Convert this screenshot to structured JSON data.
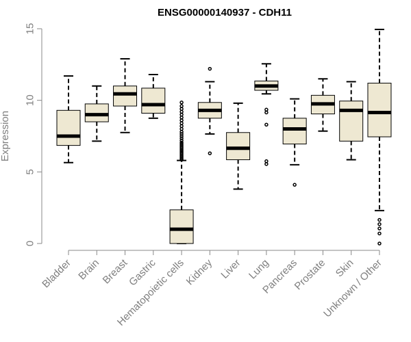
{
  "chart_data": {
    "type": "boxplot",
    "title": "ENSG00000140937 - CDH11",
    "ylabel": "Expression",
    "xlabel": "",
    "ylim": [
      0,
      15
    ],
    "yticks": [
      0,
      5,
      10,
      15
    ],
    "colors": {
      "box_fill": "#EEE8D2",
      "box_stroke": "#000000",
      "axis": "#888888",
      "tick_label": "#7F7F7F",
      "title": "#000000"
    },
    "groups": [
      {
        "name": "Bladder",
        "whisker_low": 5.65,
        "q1": 6.85,
        "median": 7.5,
        "q3": 9.3,
        "whisker_high": 11.7,
        "outliers": []
      },
      {
        "name": "Brain",
        "whisker_low": 7.15,
        "q1": 8.5,
        "median": 9.0,
        "q3": 9.75,
        "whisker_high": 11.0,
        "outliers": []
      },
      {
        "name": "Breast",
        "whisker_low": 7.75,
        "q1": 9.6,
        "median": 10.45,
        "q3": 11.0,
        "whisker_high": 12.9,
        "outliers": []
      },
      {
        "name": "Gastric",
        "whisker_low": 8.75,
        "q1": 9.1,
        "median": 9.7,
        "q3": 10.85,
        "whisker_high": 11.8,
        "outliers": []
      },
      {
        "name": "Hematopoietic cells",
        "whisker_low": 0.0,
        "q1": 0.0,
        "median": 1.0,
        "q3": 2.35,
        "whisker_high": 5.8,
        "outliers": [
          5.85,
          5.95,
          6.05,
          6.15,
          6.25,
          6.35,
          6.45,
          6.55,
          6.65,
          6.75,
          6.85,
          6.95,
          7.05,
          7.2,
          7.35,
          7.5,
          7.65,
          7.8,
          8.0,
          8.2,
          8.4,
          8.6,
          8.8,
          9.0,
          9.2,
          9.4,
          9.6,
          9.85
        ]
      },
      {
        "name": "Kidney",
        "whisker_low": 7.65,
        "q1": 8.75,
        "median": 9.3,
        "q3": 9.85,
        "whisker_high": 11.3,
        "outliers": [
          12.2,
          6.3
        ]
      },
      {
        "name": "Liver",
        "whisker_low": 3.8,
        "q1": 5.85,
        "median": 6.65,
        "q3": 7.75,
        "whisker_high": 9.8,
        "outliers": []
      },
      {
        "name": "Lung",
        "whisker_low": 10.45,
        "q1": 10.7,
        "median": 11.0,
        "q3": 11.35,
        "whisker_high": 12.55,
        "outliers": [
          9.35,
          9.15,
          8.3,
          5.75,
          5.55
        ]
      },
      {
        "name": "Pancreas",
        "whisker_low": 5.5,
        "q1": 6.95,
        "median": 8.0,
        "q3": 8.75,
        "whisker_high": 10.1,
        "outliers": [
          4.1
        ]
      },
      {
        "name": "Prostate",
        "whisker_low": 7.85,
        "q1": 9.05,
        "median": 9.75,
        "q3": 10.35,
        "whisker_high": 11.5,
        "outliers": []
      },
      {
        "name": "Skin",
        "whisker_low": 5.85,
        "q1": 7.15,
        "median": 9.3,
        "q3": 9.95,
        "whisker_high": 11.3,
        "outliers": []
      },
      {
        "name": "Unknown / Other",
        "whisker_low": 2.3,
        "q1": 7.45,
        "median": 9.15,
        "q3": 11.2,
        "whisker_high": 14.95,
        "outliers": [
          1.65,
          1.35,
          1.05,
          0.7,
          0.0
        ]
      }
    ]
  }
}
